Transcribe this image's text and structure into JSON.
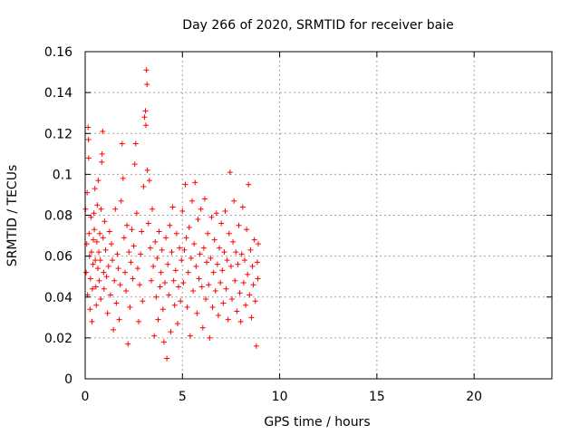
{
  "chart_data": {
    "type": "scatter",
    "title": "Day 266 of 2020, SRMTID for receiver baie",
    "xlabel": "GPS time / hours",
    "ylabel": "SRMTID / TECUs",
    "xlim": [
      0,
      24
    ],
    "ylim": [
      0,
      0.16
    ],
    "x_ticks": [
      0,
      5,
      10,
      15,
      20
    ],
    "x_tick_labels": [
      "0",
      "5",
      "10",
      "15",
      "20"
    ],
    "y_ticks": [
      0,
      0.02,
      0.04,
      0.06,
      0.08,
      0.1,
      0.12,
      0.14,
      0.16
    ],
    "y_tick_labels": [
      "0",
      "0.02",
      "0.04",
      "0.06",
      "0.08",
      "0.1",
      "0.12",
      "0.14",
      "0.16"
    ],
    "grid": true,
    "marker": "+",
    "marker_color": "#ff0000",
    "series": [
      {
        "name": "SRMTID",
        "points": [
          [
            0.02,
            0.083
          ],
          [
            0.05,
            0.052
          ],
          [
            0.08,
            0.066
          ],
          [
            0.1,
            0.091
          ],
          [
            0.12,
            0.041
          ],
          [
            0.15,
            0.123
          ],
          [
            0.17,
            0.117
          ],
          [
            0.18,
            0.108
          ],
          [
            0.2,
            0.071
          ],
          [
            0.22,
            0.06
          ],
          [
            0.25,
            0.034
          ],
          [
            0.27,
            0.049
          ],
          [
            0.3,
            0.079
          ],
          [
            0.32,
            0.062
          ],
          [
            0.35,
            0.028
          ],
          [
            0.37,
            0.044
          ],
          [
            0.4,
            0.056
          ],
          [
            0.42,
            0.068
          ],
          [
            0.45,
            0.081
          ],
          [
            0.47,
            0.073
          ],
          [
            0.5,
            0.093
          ],
          [
            0.52,
            0.058
          ],
          [
            0.55,
            0.045
          ],
          [
            0.57,
            0.036
          ],
          [
            0.6,
            0.067
          ],
          [
            0.62,
            0.085
          ],
          [
            0.65,
            0.054
          ],
          [
            0.67,
            0.097
          ],
          [
            0.7,
            0.062
          ],
          [
            0.72,
            0.048
          ],
          [
            0.75,
            0.071
          ],
          [
            0.78,
            0.058
          ],
          [
            0.8,
            0.039
          ],
          [
            0.82,
            0.083
          ],
          [
            0.85,
            0.106
          ],
          [
            0.87,
            0.11
          ],
          [
            0.9,
            0.121
          ],
          [
            0.92,
            0.069
          ],
          [
            0.95,
            0.052
          ],
          [
            0.97,
            0.044
          ],
          [
            1.0,
            0.077
          ],
          [
            1.05,
            0.063
          ],
          [
            1.1,
            0.05
          ],
          [
            1.15,
            0.032
          ],
          [
            1.2,
            0.055
          ],
          [
            1.25,
            0.072
          ],
          [
            1.3,
            0.041
          ],
          [
            1.35,
            0.066
          ],
          [
            1.4,
            0.058
          ],
          [
            1.45,
            0.024
          ],
          [
            1.5,
            0.048
          ],
          [
            1.55,
            0.083
          ],
          [
            1.6,
            0.037
          ],
          [
            1.65,
            0.061
          ],
          [
            1.7,
            0.054
          ],
          [
            1.75,
            0.029
          ],
          [
            1.8,
            0.046
          ],
          [
            1.85,
            0.087
          ],
          [
            1.9,
            0.115
          ],
          [
            1.95,
            0.098
          ],
          [
            2.0,
            0.069
          ],
          [
            2.05,
            0.052
          ],
          [
            2.1,
            0.043
          ],
          [
            2.15,
            0.075
          ],
          [
            2.2,
            0.017
          ],
          [
            2.25,
            0.062
          ],
          [
            2.3,
            0.035
          ],
          [
            2.35,
            0.057
          ],
          [
            2.4,
            0.073
          ],
          [
            2.45,
            0.049
          ],
          [
            2.5,
            0.065
          ],
          [
            2.55,
            0.105
          ],
          [
            2.6,
            0.115
          ],
          [
            2.65,
            0.081
          ],
          [
            2.7,
            0.054
          ],
          [
            2.75,
            0.028
          ],
          [
            2.8,
            0.046
          ],
          [
            2.85,
            0.061
          ],
          [
            2.9,
            0.072
          ],
          [
            2.95,
            0.038
          ],
          [
            3.0,
            0.094
          ],
          [
            3.05,
            0.128
          ],
          [
            3.1,
            0.131
          ],
          [
            3.12,
            0.124
          ],
          [
            3.15,
            0.151
          ],
          [
            3.18,
            0.144
          ],
          [
            3.2,
            0.102
          ],
          [
            3.25,
            0.076
          ],
          [
            3.3,
            0.097
          ],
          [
            3.35,
            0.064
          ],
          [
            3.4,
            0.048
          ],
          [
            3.45,
            0.083
          ],
          [
            3.5,
            0.055
          ],
          [
            3.55,
            0.021
          ],
          [
            3.6,
            0.067
          ],
          [
            3.65,
            0.04
          ],
          [
            3.7,
            0.059
          ],
          [
            3.75,
            0.029
          ],
          [
            3.8,
            0.072
          ],
          [
            3.85,
            0.045
          ],
          [
            3.9,
            0.052
          ],
          [
            3.95,
            0.063
          ],
          [
            4.0,
            0.034
          ],
          [
            4.05,
            0.018
          ],
          [
            4.1,
            0.047
          ],
          [
            4.15,
            0.069
          ],
          [
            4.2,
            0.01
          ],
          [
            4.25,
            0.056
          ],
          [
            4.3,
            0.041
          ],
          [
            4.35,
            0.075
          ],
          [
            4.4,
            0.023
          ],
          [
            4.45,
            0.062
          ],
          [
            4.5,
            0.084
          ],
          [
            4.55,
            0.048
          ],
          [
            4.6,
            0.036
          ],
          [
            4.65,
            0.053
          ],
          [
            4.7,
            0.071
          ],
          [
            4.75,
            0.027
          ],
          [
            4.8,
            0.045
          ],
          [
            4.85,
            0.064
          ],
          [
            4.9,
            0.038
          ],
          [
            4.95,
            0.058
          ],
          [
            5.0,
            0.082
          ],
          [
            5.05,
            0.047
          ],
          [
            5.1,
            0.063
          ],
          [
            5.15,
            0.095
          ],
          [
            5.2,
            0.069
          ],
          [
            5.25,
            0.035
          ],
          [
            5.3,
            0.052
          ],
          [
            5.35,
            0.074
          ],
          [
            5.4,
            0.021
          ],
          [
            5.45,
            0.059
          ],
          [
            5.5,
            0.087
          ],
          [
            5.55,
            0.043
          ],
          [
            5.6,
            0.066
          ],
          [
            5.65,
            0.096
          ],
          [
            5.7,
            0.055
          ],
          [
            5.75,
            0.032
          ],
          [
            5.8,
            0.078
          ],
          [
            5.85,
            0.049
          ],
          [
            5.9,
            0.061
          ],
          [
            5.95,
            0.083
          ],
          [
            6.0,
            0.045
          ],
          [
            6.05,
            0.025
          ],
          [
            6.1,
            0.064
          ],
          [
            6.15,
            0.088
          ],
          [
            6.2,
            0.039
          ],
          [
            6.25,
            0.057
          ],
          [
            6.3,
            0.071
          ],
          [
            6.35,
            0.046
          ],
          [
            6.4,
            0.02
          ],
          [
            6.45,
            0.059
          ],
          [
            6.5,
            0.079
          ],
          [
            6.55,
            0.035
          ],
          [
            6.6,
            0.052
          ],
          [
            6.65,
            0.068
          ],
          [
            6.7,
            0.043
          ],
          [
            6.75,
            0.081
          ],
          [
            6.8,
            0.056
          ],
          [
            6.85,
            0.031
          ],
          [
            6.9,
            0.064
          ],
          [
            6.95,
            0.047
          ],
          [
            7.0,
            0.076
          ],
          [
            7.05,
            0.053
          ],
          [
            7.1,
            0.037
          ],
          [
            7.15,
            0.062
          ],
          [
            7.2,
            0.082
          ],
          [
            7.25,
            0.044
          ],
          [
            7.3,
            0.058
          ],
          [
            7.35,
            0.029
          ],
          [
            7.4,
            0.071
          ],
          [
            7.45,
            0.101
          ],
          [
            7.5,
            0.055
          ],
          [
            7.55,
            0.039
          ],
          [
            7.6,
            0.067
          ],
          [
            7.65,
            0.087
          ],
          [
            7.7,
            0.048
          ],
          [
            7.75,
            0.062
          ],
          [
            7.8,
            0.033
          ],
          [
            7.85,
            0.056
          ],
          [
            7.9,
            0.075
          ],
          [
            7.95,
            0.042
          ],
          [
            8.0,
            0.028
          ],
          [
            8.05,
            0.061
          ],
          [
            8.1,
            0.084
          ],
          [
            8.15,
            0.047
          ],
          [
            8.2,
            0.058
          ],
          [
            8.25,
            0.036
          ],
          [
            8.3,
            0.073
          ],
          [
            8.35,
            0.051
          ],
          [
            8.4,
            0.095
          ],
          [
            8.45,
            0.041
          ],
          [
            8.5,
            0.063
          ],
          [
            8.55,
            0.03
          ],
          [
            8.6,
            0.055
          ],
          [
            8.65,
            0.046
          ],
          [
            8.7,
            0.068
          ],
          [
            8.75,
            0.038
          ],
          [
            8.8,
            0.016
          ],
          [
            8.85,
            0.057
          ],
          [
            8.88,
            0.049
          ],
          [
            8.9,
            0.066
          ]
        ]
      }
    ]
  }
}
